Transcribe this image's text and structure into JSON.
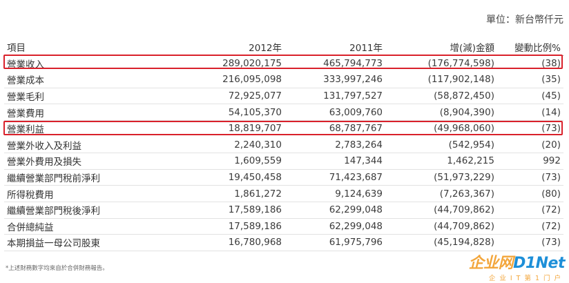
{
  "unit_label": "單位：新台幣仟元",
  "table": {
    "headers": [
      "項目",
      "2012年",
      "2011年",
      "增(減)金額",
      "變動比例%"
    ],
    "rows": [
      {
        "item": "營業收入",
        "y2012": "289,020,175",
        "y2011": "465,794,773",
        "change": "(176,774,598)",
        "pct": "(38)",
        "highlighted": true
      },
      {
        "item": "營業成本",
        "y2012": "216,095,098",
        "y2011": "333,997,246",
        "change": "(117,902,148)",
        "pct": "(35)"
      },
      {
        "item": "營業毛利",
        "y2012": "72,925,077",
        "y2011": "131,797,527",
        "change": "(58,872,450)",
        "pct": "(45)"
      },
      {
        "item": "營業費用",
        "y2012": "54,105,370",
        "y2011": "63,009,760",
        "change": "(8,904,390)",
        "pct": "(14)"
      },
      {
        "item": "營業利益",
        "y2012": "18,819,707",
        "y2011": "68,787,767",
        "change": "(49,968,060)",
        "pct": "(73)",
        "highlighted": true
      },
      {
        "item": "營業外收入及利益",
        "y2012": "2,240,310",
        "y2011": "2,783,264",
        "change": "(542,954)",
        "pct": "(20)"
      },
      {
        "item": "營業外費用及損失",
        "y2012": "1,609,559",
        "y2011": "147,344",
        "change": "1,462,215",
        "pct": "992"
      },
      {
        "item": "繼續營業部門稅前淨利",
        "y2012": "19,450,458",
        "y2011": "71,423,687",
        "change": "(51,973,229)",
        "pct": "(73)"
      },
      {
        "item": "所得稅費用",
        "y2012": "1,861,272",
        "y2011": "9,124,639",
        "change": "(7,263,367)",
        "pct": "(80)"
      },
      {
        "item": "繼續營業部門稅後淨利",
        "y2012": "17,589,186",
        "y2011": "62,299,048",
        "change": "(44,709,862)",
        "pct": "(72)"
      },
      {
        "item": "合併總純益",
        "y2012": "17,589,186",
        "y2011": "62,299,048",
        "change": "(44,709,862)",
        "pct": "(72)"
      },
      {
        "item": "本期損益一母公司股東",
        "y2012": "16,780,968",
        "y2011": "61,975,796",
        "change": "(45,194,828)",
        "pct": "(73)"
      }
    ]
  },
  "highlight_color": "#d9202a",
  "footnote": "*上述財務數字均來自於合併財務報告。",
  "watermark": {
    "logo": "企业网D1Net",
    "tagline": "企业IT第1门户",
    "colors": {
      "orange": "#f3a63b",
      "blue": "#1d8fd8"
    }
  }
}
